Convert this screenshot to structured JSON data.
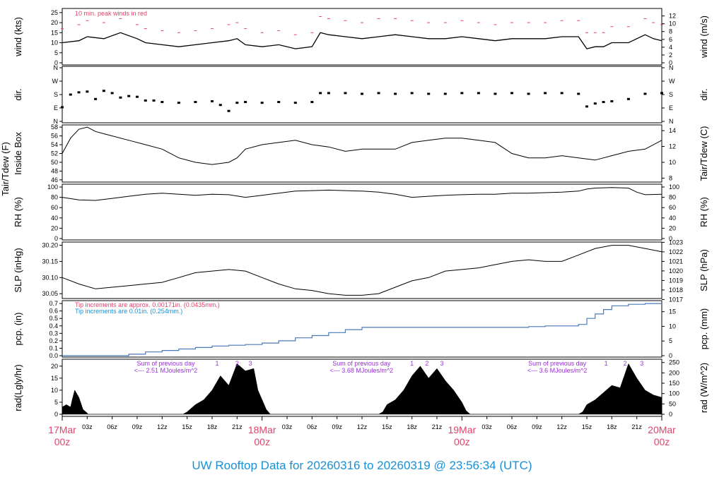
{
  "title": "UW Rooftop Data for 20260316  to  20260319 @ 23:56:34  (UTC)",
  "colors": {
    "title": "#1a8fd6",
    "day_label": "#e0436b",
    "peak": "#e0436b",
    "pcp": "#4a7ab8",
    "note_blue": "#1a8fd6",
    "rad_note": "#9b30d8",
    "line": "#000000"
  },
  "x_axis": {
    "day_labels": [
      {
        "date": "17Mar",
        "time": "00z",
        "hour": 0
      },
      {
        "date": "18Mar",
        "time": "00z",
        "hour": 24
      },
      {
        "date": "19Mar",
        "time": "00z",
        "hour": 48
      },
      {
        "date": "20Mar",
        "time": "00z",
        "hour": 72
      }
    ],
    "hour_ticks": [
      {
        "hour": 3,
        "label": "03z"
      },
      {
        "hour": 6,
        "label": "06z"
      },
      {
        "hour": 9,
        "label": "09z"
      },
      {
        "hour": 12,
        "label": "12z"
      },
      {
        "hour": 15,
        "label": "15z"
      },
      {
        "hour": 18,
        "label": "18z"
      },
      {
        "hour": 21,
        "label": "21z"
      },
      {
        "hour": 27,
        "label": "03z"
      },
      {
        "hour": 30,
        "label": "06z"
      },
      {
        "hour": 33,
        "label": "09z"
      },
      {
        "hour": 36,
        "label": "12z"
      },
      {
        "hour": 39,
        "label": "15z"
      },
      {
        "hour": 42,
        "label": "18z"
      },
      {
        "hour": 45,
        "label": "21z"
      },
      {
        "hour": 51,
        "label": "03z"
      },
      {
        "hour": 54,
        "label": "06z"
      },
      {
        "hour": 57,
        "label": "09z"
      },
      {
        "hour": 60,
        "label": "12z"
      },
      {
        "hour": 63,
        "label": "15z"
      },
      {
        "hour": 66,
        "label": "18z"
      },
      {
        "hour": 69,
        "label": "21z"
      }
    ]
  },
  "panels": {
    "wind": {
      "left_label": "wind (kts)",
      "right_label": "wind (m/s)",
      "left_ticks": [
        "0",
        "5",
        "10",
        "15",
        "20",
        "25"
      ],
      "right_ticks": [
        "0",
        "2",
        "4",
        "6",
        "8",
        "10",
        "12"
      ],
      "note": "10 min. peak winds in red"
    },
    "dir": {
      "left_label": "dir.",
      "right_label": "dir.",
      "ticks": [
        "N",
        "E",
        "S",
        "W",
        "N"
      ]
    },
    "temp": {
      "left_label_1": "Tair/Tdew (F)",
      "left_label_2": "Inside Box",
      "right_label": "Tair/Tdew (C)",
      "left_ticks": [
        "46",
        "48",
        "50",
        "52",
        "54",
        "56",
        "58"
      ],
      "right_ticks": [
        "8",
        "10",
        "12",
        "14"
      ]
    },
    "rh": {
      "left_label": "RH (%)",
      "right_label": "RH (%)",
      "ticks": [
        "0",
        "20",
        "40",
        "60",
        "80",
        "100"
      ]
    },
    "slp": {
      "left_label": "SLP (inHg)",
      "right_label": "SLP (hPa)",
      "left_ticks": [
        "30.05",
        "30.10",
        "30.15",
        "30.20"
      ],
      "right_ticks": [
        "1017",
        "1018",
        "1019",
        "1020",
        "1021",
        "1022",
        "1023"
      ]
    },
    "pcp": {
      "left_label": "pcp. (in)",
      "right_label": "pcp. (mm)",
      "left_ticks": [
        "0.0",
        "0.1",
        "0.2",
        "0.3",
        "0.4",
        "0.5",
        "0.6",
        "0.7"
      ],
      "right_ticks": [
        "0",
        "5",
        "10",
        "15"
      ],
      "note_1": "Tip increments are approx. 0.00171in. (0.0435mm.)",
      "note_2": "Tip increments are 0.01in. (0.254mm.)"
    },
    "rad": {
      "left_label": "rad(Lgly/hr)",
      "right_label": "rad (W/m^2)",
      "left_ticks": [
        "0",
        "5",
        "10",
        "15",
        "20"
      ],
      "right_ticks": [
        "0",
        "50",
        "100",
        "150",
        "200",
        "250"
      ],
      "sum_title": "Sum of previous day",
      "sums": [
        {
          "hour": 11,
          "text": "<--- 2.51 MJoules/m^2"
        },
        {
          "hour": 34.5,
          "text": "<--- 3.68 MJoules/m^2"
        },
        {
          "hour": 58,
          "text": "<--- 3.6 MJoules/m^2"
        }
      ],
      "markers": [
        {
          "hour": 18.6,
          "label": "1"
        },
        {
          "hour": 21,
          "label": "2"
        },
        {
          "hour": 22.6,
          "label": "3"
        },
        {
          "hour": 42,
          "label": "1"
        },
        {
          "hour": 43.8,
          "label": "2"
        },
        {
          "hour": 45.6,
          "label": "3"
        },
        {
          "hour": 65.3,
          "label": "1"
        },
        {
          "hour": 67.6,
          "label": "2"
        },
        {
          "hour": 69.6,
          "label": "3"
        }
      ]
    }
  },
  "chart_data": [
    {
      "type": "line",
      "name": "wind",
      "xlabel": "",
      "ylabel": "wind (kts)",
      "ylim": [
        0,
        26
      ],
      "x": [
        0,
        2,
        3,
        5,
        7,
        9,
        10,
        12,
        14,
        16,
        18,
        20,
        21,
        22,
        24,
        26,
        28,
        30,
        31,
        32,
        34,
        36,
        38,
        40,
        42,
        44,
        46,
        48,
        50,
        52,
        54,
        56,
        58,
        60,
        62,
        63,
        64,
        65,
        66,
        68,
        70,
        71,
        72
      ],
      "series": [
        {
          "name": "wind",
          "values": [
            10,
            11,
            13,
            12,
            15,
            12,
            10,
            9,
            8,
            9,
            10,
            11,
            12,
            9,
            8,
            9,
            7,
            8,
            15,
            14,
            13,
            12,
            13,
            14,
            13,
            12,
            12,
            13,
            12,
            11,
            12,
            12,
            12,
            13,
            13,
            7,
            8,
            8,
            10,
            10,
            14,
            12,
            11
          ]
        },
        {
          "name": "peak",
          "values": [
            17,
            19,
            21,
            20,
            22,
            19,
            17,
            16,
            15,
            16,
            17,
            19,
            20,
            17,
            15,
            16,
            14,
            15,
            23,
            22,
            21,
            20,
            22,
            22,
            21,
            20,
            20,
            21,
            20,
            19,
            20,
            20,
            20,
            21,
            21,
            15,
            15,
            15,
            18,
            18,
            22,
            20,
            19
          ]
        }
      ]
    },
    {
      "type": "scatter",
      "name": "dir",
      "xlabel": "",
      "ylabel": "dir.",
      "ylim": [
        0,
        360
      ],
      "yticks": [
        "N",
        "E",
        "S",
        "W",
        "N"
      ],
      "x": [
        0,
        1,
        2,
        3,
        4,
        5,
        6,
        7,
        8,
        9,
        10,
        11,
        12,
        14,
        16,
        18,
        19,
        20,
        21,
        22,
        24,
        26,
        28,
        30,
        31,
        32,
        34,
        36,
        38,
        40,
        42,
        44,
        46,
        48,
        50,
        52,
        54,
        56,
        58,
        60,
        62,
        63,
        64,
        65,
        66,
        68,
        70,
        72
      ],
      "values": [
        95,
        180,
        195,
        200,
        150,
        205,
        190,
        160,
        170,
        165,
        140,
        140,
        130,
        125,
        130,
        135,
        110,
        70,
        125,
        130,
        125,
        130,
        125,
        130,
        190,
        190,
        190,
        185,
        190,
        185,
        190,
        185,
        185,
        190,
        190,
        185,
        190,
        185,
        190,
        190,
        185,
        100,
        120,
        130,
        135,
        150,
        185,
        190
      ]
    },
    {
      "type": "line",
      "name": "temp",
      "xlabel": "",
      "ylabel": "Inside Box",
      "ylim": [
        45.5,
        58.5
      ],
      "x": [
        0,
        1,
        2,
        3,
        4,
        5,
        6,
        8,
        10,
        12,
        14,
        16,
        18,
        20,
        21,
        22,
        24,
        26,
        28,
        30,
        32,
        34,
        36,
        38,
        40,
        42,
        44,
        46,
        48,
        50,
        52,
        54,
        56,
        58,
        60,
        62,
        64,
        66,
        68,
        70,
        72
      ],
      "values": [
        52,
        55.5,
        57.5,
        58,
        57,
        56.5,
        56,
        55,
        54,
        53,
        51,
        50,
        49.5,
        50,
        51,
        53,
        54,
        54.5,
        55,
        54,
        53.5,
        52.5,
        53,
        53,
        53,
        54.5,
        55,
        55.5,
        55.5,
        55,
        54.5,
        52,
        51,
        51,
        51.5,
        51,
        50.5,
        51.5,
        52.5,
        53,
        55
      ]
    },
    {
      "type": "line",
      "name": "rh",
      "xlabel": "",
      "ylabel": "RH (%)",
      "ylim": [
        0,
        100
      ],
      "x": [
        0,
        2,
        4,
        6,
        8,
        10,
        12,
        14,
        16,
        18,
        20,
        22,
        24,
        26,
        28,
        30,
        32,
        34,
        36,
        38,
        40,
        42,
        44,
        46,
        48,
        50,
        52,
        54,
        56,
        58,
        60,
        62,
        63,
        64,
        66,
        68,
        69,
        70,
        72
      ],
      "values": [
        80,
        75,
        74,
        78,
        82,
        86,
        88,
        86,
        84,
        86,
        85,
        80,
        84,
        88,
        92,
        93,
        94,
        93,
        92,
        90,
        86,
        80,
        82,
        84,
        85,
        86,
        86,
        88,
        88,
        89,
        90,
        92,
        96,
        98,
        99,
        98,
        90,
        85,
        86
      ]
    },
    {
      "type": "line",
      "name": "slp",
      "xlabel": "",
      "ylabel": "SLP (inHg)",
      "ylim": [
        30.035,
        30.21
      ],
      "x": [
        0,
        2,
        4,
        6,
        8,
        10,
        12,
        14,
        16,
        18,
        20,
        22,
        24,
        26,
        28,
        30,
        32,
        34,
        36,
        38,
        40,
        42,
        44,
        46,
        48,
        50,
        52,
        54,
        56,
        58,
        60,
        62,
        64,
        66,
        68,
        70,
        72
      ],
      "values": [
        30.1,
        30.08,
        30.065,
        30.07,
        30.075,
        30.08,
        30.085,
        30.1,
        30.115,
        30.12,
        30.125,
        30.12,
        30.1,
        30.08,
        30.065,
        30.06,
        30.05,
        30.045,
        30.045,
        30.05,
        30.07,
        30.09,
        30.1,
        30.12,
        30.125,
        30.13,
        30.14,
        30.15,
        30.155,
        30.15,
        30.15,
        30.17,
        30.19,
        30.2,
        30.2,
        30.19,
        30.18
      ]
    },
    {
      "type": "line",
      "name": "pcp",
      "xlabel": "",
      "ylabel": "pcp. (in)",
      "ylim": [
        0,
        0.72
      ],
      "x": [
        0,
        6,
        8,
        10,
        12,
        14,
        16,
        18,
        20,
        22,
        24,
        26,
        28,
        30,
        32,
        34,
        36,
        38,
        40,
        42,
        44,
        46,
        48,
        50,
        52,
        54,
        56,
        58,
        60,
        62,
        63,
        64,
        65,
        66,
        68,
        70,
        72
      ],
      "values": [
        0,
        0,
        0.02,
        0.05,
        0.07,
        0.09,
        0.11,
        0.13,
        0.14,
        0.15,
        0.17,
        0.2,
        0.24,
        0.27,
        0.31,
        0.35,
        0.38,
        0.38,
        0.38,
        0.38,
        0.38,
        0.38,
        0.38,
        0.38,
        0.38,
        0.38,
        0.39,
        0.4,
        0.4,
        0.42,
        0.5,
        0.56,
        0.62,
        0.67,
        0.69,
        0.7,
        0.7
      ]
    },
    {
      "type": "area",
      "name": "rad",
      "xlabel": "",
      "ylabel": "rad(Lgly/hr)",
      "ylim": [
        0,
        22
      ],
      "x": [
        0,
        0.5,
        1,
        1.2,
        1.5,
        2,
        2.5,
        3,
        3.1,
        14.5,
        15,
        16,
        17,
        18,
        19,
        20,
        21,
        22,
        23,
        23.5,
        24,
        24.5,
        25,
        38,
        38.5,
        39,
        40,
        41,
        42,
        43,
        44,
        45,
        46,
        47,
        48,
        48.5,
        49,
        62,
        62.5,
        63,
        64,
        65,
        66,
        67,
        68,
        69,
        70,
        71,
        72
      ],
      "values": [
        3,
        4,
        3,
        6,
        10,
        7,
        2,
        0.5,
        0,
        0,
        1,
        4,
        6,
        10,
        16,
        12,
        21,
        18,
        19,
        10,
        6,
        2,
        0,
        0,
        1,
        4,
        6,
        10,
        16,
        20,
        15,
        19,
        14,
        10,
        5,
        1.5,
        0,
        0,
        1,
        4,
        6,
        9,
        12,
        11,
        21,
        15,
        10,
        8,
        7
      ]
    }
  ]
}
